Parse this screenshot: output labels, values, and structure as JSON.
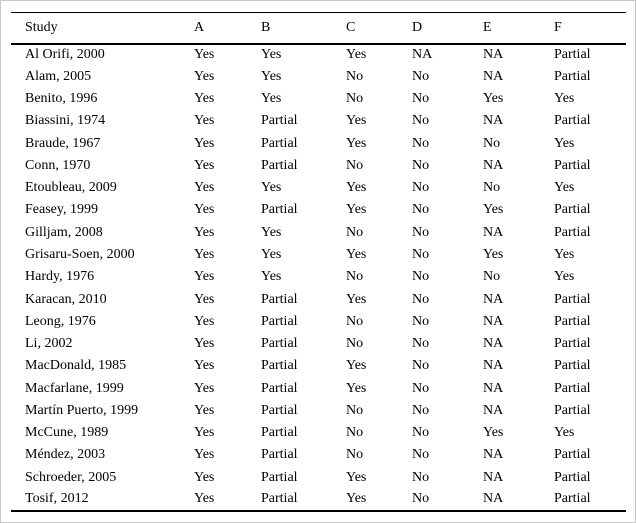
{
  "page": {
    "background_color": "#ffffff",
    "frame_border_color": "#c8c8c8",
    "rule_color": "#000000",
    "text_color": "#000000"
  },
  "table": {
    "columns": [
      "Study",
      "A",
      "B",
      "C",
      "D",
      "E",
      "F"
    ],
    "rows": [
      {
        "study": "Al Orifi, 2000",
        "values": [
          "Yes",
          "Yes",
          "Yes",
          "NA",
          "NA",
          "Partial"
        ]
      },
      {
        "study": "Alam, 2005",
        "values": [
          "Yes",
          "Yes",
          "No",
          "No",
          "NA",
          "Partial"
        ]
      },
      {
        "study": "Benito, 1996",
        "values": [
          "Yes",
          "Yes",
          "No",
          "No",
          "Yes",
          "Yes"
        ]
      },
      {
        "study": "Biassini, 1974",
        "values": [
          "Yes",
          "Partial",
          "Yes",
          "No",
          "NA",
          "Partial"
        ]
      },
      {
        "study": "Braude, 1967",
        "values": [
          "Yes",
          "Partial",
          "Yes",
          "No",
          "No",
          "Yes"
        ]
      },
      {
        "study": "Conn, 1970",
        "values": [
          "Yes",
          "Partial",
          "No",
          "No",
          "NA",
          "Partial"
        ]
      },
      {
        "study": "Etoubleau, 2009",
        "values": [
          "Yes",
          "Yes",
          "Yes",
          "No",
          "No",
          "Yes"
        ]
      },
      {
        "study": "Feasey, 1999",
        "values": [
          "Yes",
          "Partial",
          "Yes",
          "No",
          "Yes",
          "Partial"
        ]
      },
      {
        "study": "Gilljam, 2008",
        "values": [
          "Yes",
          "Yes",
          "No",
          "No",
          "NA",
          "Partial"
        ]
      },
      {
        "study": "Grisaru-Soen, 2000",
        "values": [
          "Yes",
          "Yes",
          "Yes",
          "No",
          "Yes",
          "Yes"
        ]
      },
      {
        "study": "Hardy, 1976",
        "values": [
          "Yes",
          "Yes",
          "No",
          "No",
          "No",
          "Yes"
        ]
      },
      {
        "study": "Karacan, 2010",
        "values": [
          "Yes",
          "Partial",
          "Yes",
          "No",
          "NA",
          "Partial"
        ]
      },
      {
        "study": "Leong, 1976",
        "values": [
          "Yes",
          "Partial",
          "No",
          "No",
          "NA",
          "Partial"
        ]
      },
      {
        "study": "Li, 2002",
        "values": [
          "Yes",
          "Partial",
          "No",
          "No",
          "NA",
          "Partial"
        ]
      },
      {
        "study": "MacDonald, 1985",
        "values": [
          "Yes",
          "Partial",
          "Yes",
          "No",
          "NA",
          "Partial"
        ]
      },
      {
        "study": "Macfarlane, 1999",
        "values": [
          "Yes",
          "Partial",
          "Yes",
          "No",
          "NA",
          "Partial"
        ]
      },
      {
        "study": "Martín Puerto, 1999",
        "values": [
          "Yes",
          "Partial",
          "No",
          "No",
          "NA",
          "Partial"
        ]
      },
      {
        "study": "McCune, 1989",
        "values": [
          "Yes",
          "Partial",
          "No",
          "No",
          "Yes",
          "Yes"
        ]
      },
      {
        "study": "Méndez, 2003",
        "values": [
          "Yes",
          "Partial",
          "No",
          "No",
          "NA",
          "Partial"
        ]
      },
      {
        "study": "Schroeder, 2005",
        "values": [
          "Yes",
          "Partial",
          "Yes",
          "No",
          "NA",
          "Partial"
        ]
      },
      {
        "study": "Tosif, 2012",
        "values": [
          "Yes",
          "Partial",
          "Yes",
          "No",
          "NA",
          "Partial"
        ]
      }
    ]
  }
}
